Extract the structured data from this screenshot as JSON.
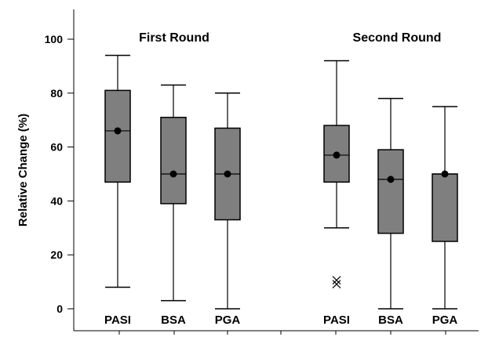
{
  "chart_data": {
    "type": "box",
    "ylabel": "Relative Change (%)",
    "ylim": [
      -5,
      110
    ],
    "yticks": [
      0,
      20,
      40,
      60,
      80,
      100
    ],
    "groups": [
      {
        "title": "First Round",
        "boxes": [
          {
            "label": "PASI",
            "whisker_low": 8,
            "q1": 47,
            "median": 66,
            "mean": 66,
            "q3": 81,
            "whisker_high": 94,
            "outliers": []
          },
          {
            "label": "BSA",
            "whisker_low": 3,
            "q1": 39,
            "median": 50,
            "mean": 50,
            "q3": 71,
            "whisker_high": 83,
            "outliers": []
          },
          {
            "label": "PGA",
            "whisker_low": 0,
            "q1": 33,
            "median": 50,
            "mean": 50,
            "q3": 67,
            "whisker_high": 80,
            "outliers": []
          }
        ]
      },
      {
        "title": "Second Round",
        "boxes": [
          {
            "label": "PASI",
            "whisker_low": 30,
            "q1": 47,
            "median": 57,
            "mean": 57,
            "q3": 68,
            "whisker_high": 92,
            "outliers": [
              10
            ]
          },
          {
            "label": "BSA",
            "whisker_low": 0,
            "q1": 28,
            "median": 48,
            "mean": 48,
            "q3": 59,
            "whisker_high": 78,
            "outliers": []
          },
          {
            "label": "PGA",
            "whisker_low": 0,
            "q1": 25,
            "median": 50,
            "mean": 50,
            "q3": 50,
            "whisker_high": 75,
            "outliers": []
          }
        ]
      }
    ],
    "colors": {
      "box_fill": "#7f7f7f",
      "stroke": "#000000",
      "background": "#ffffff"
    }
  }
}
